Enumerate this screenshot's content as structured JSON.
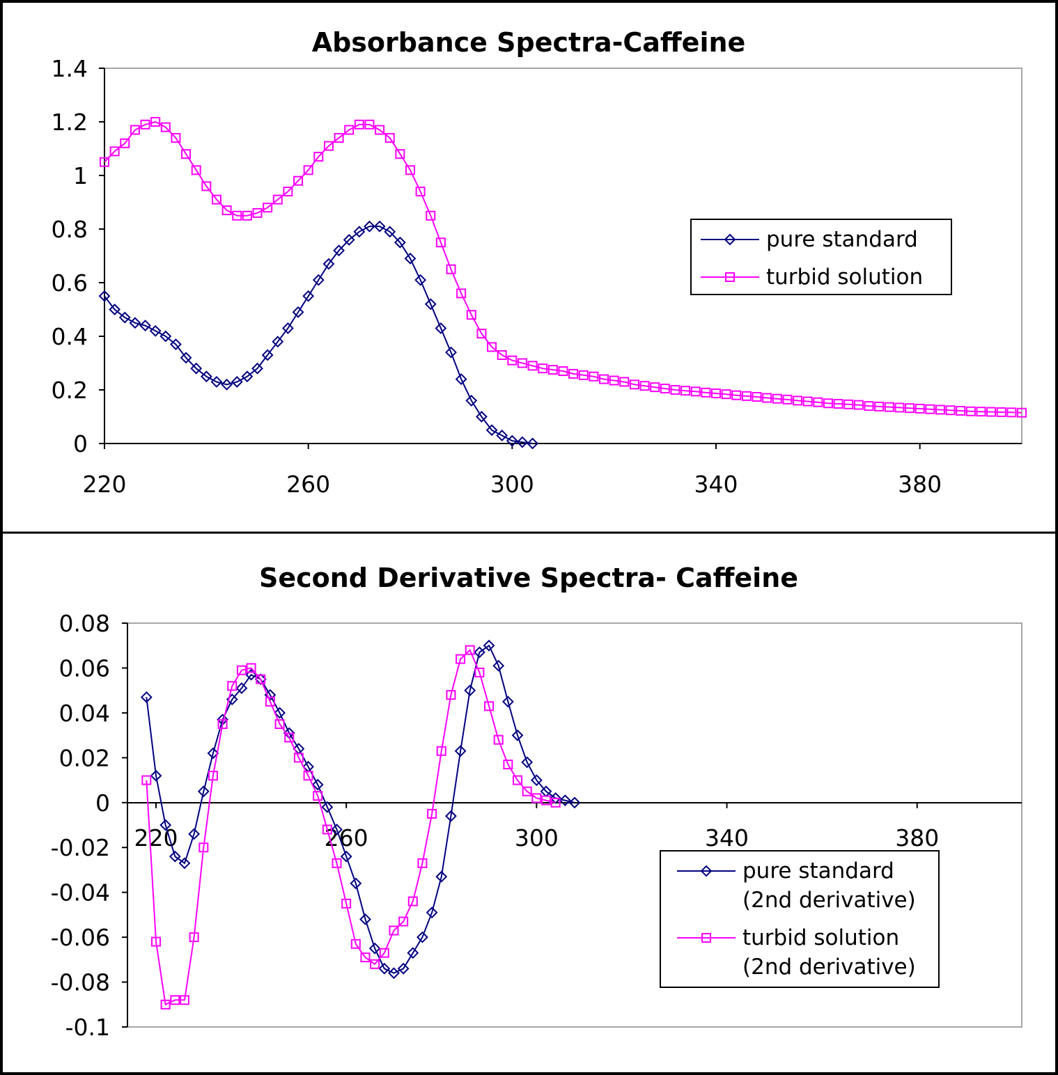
{
  "colors": {
    "pure": "#000080",
    "turbid": "#ff00ff"
  },
  "chart_data": [
    {
      "type": "line",
      "title": "Absorbance Spectra-Caffeine",
      "xlim": [
        220,
        400
      ],
      "ylim": [
        0,
        1.4
      ],
      "xticks": [
        220,
        260,
        300,
        340,
        380
      ],
      "xtick_labels": [
        "220",
        "260",
        "300",
        "340",
        "380"
      ],
      "yticks": [
        0,
        0.2,
        0.4,
        0.6,
        0.8,
        1.0,
        1.2,
        1.4
      ],
      "ytick_labels": [
        "0",
        "0.2",
        "0.4",
        "0.6",
        "0.8",
        "1",
        "1.2",
        "1.4"
      ],
      "grid": false,
      "legend_position": "right",
      "series": [
        {
          "name": "pure standard",
          "marker": "diamond",
          "color": "#000080",
          "points": [
            [
              220,
              0.55
            ],
            [
              222,
              0.5
            ],
            [
              224,
              0.47
            ],
            [
              226,
              0.45
            ],
            [
              228,
              0.44
            ],
            [
              230,
              0.42
            ],
            [
              232,
              0.4
            ],
            [
              234,
              0.37
            ],
            [
              236,
              0.32
            ],
            [
              238,
              0.28
            ],
            [
              240,
              0.25
            ],
            [
              242,
              0.23
            ],
            [
              244,
              0.22
            ],
            [
              246,
              0.23
            ],
            [
              248,
              0.25
            ],
            [
              250,
              0.28
            ],
            [
              252,
              0.33
            ],
            [
              254,
              0.38
            ],
            [
              256,
              0.43
            ],
            [
              258,
              0.49
            ],
            [
              260,
              0.55
            ],
            [
              262,
              0.61
            ],
            [
              264,
              0.67
            ],
            [
              266,
              0.72
            ],
            [
              268,
              0.76
            ],
            [
              270,
              0.79
            ],
            [
              272,
              0.81
            ],
            [
              274,
              0.81
            ],
            [
              276,
              0.79
            ],
            [
              278,
              0.75
            ],
            [
              280,
              0.69
            ],
            [
              282,
              0.61
            ],
            [
              284,
              0.52
            ],
            [
              286,
              0.43
            ],
            [
              288,
              0.34
            ],
            [
              290,
              0.24
            ],
            [
              292,
              0.16
            ],
            [
              294,
              0.1
            ],
            [
              296,
              0.05
            ],
            [
              298,
              0.03
            ],
            [
              300,
              0.01
            ],
            [
              302,
              0.005
            ],
            [
              304,
              0
            ]
          ]
        },
        {
          "name": "turbid solution",
          "marker": "square",
          "color": "#ff00ff",
          "points": [
            [
              220,
              1.05
            ],
            [
              222,
              1.09
            ],
            [
              224,
              1.12
            ],
            [
              226,
              1.17
            ],
            [
              228,
              1.19
            ],
            [
              230,
              1.2
            ],
            [
              232,
              1.18
            ],
            [
              234,
              1.14
            ],
            [
              236,
              1.08
            ],
            [
              238,
              1.02
            ],
            [
              240,
              0.96
            ],
            [
              242,
              0.91
            ],
            [
              244,
              0.87
            ],
            [
              246,
              0.85
            ],
            [
              248,
              0.85
            ],
            [
              250,
              0.86
            ],
            [
              252,
              0.88
            ],
            [
              254,
              0.91
            ],
            [
              256,
              0.94
            ],
            [
              258,
              0.98
            ],
            [
              260,
              1.02
            ],
            [
              262,
              1.07
            ],
            [
              264,
              1.11
            ],
            [
              266,
              1.14
            ],
            [
              268,
              1.17
            ],
            [
              270,
              1.19
            ],
            [
              272,
              1.19
            ],
            [
              274,
              1.17
            ],
            [
              276,
              1.14
            ],
            [
              278,
              1.08
            ],
            [
              280,
              1.02
            ],
            [
              282,
              0.94
            ],
            [
              284,
              0.85
            ],
            [
              286,
              0.75
            ],
            [
              288,
              0.65
            ],
            [
              290,
              0.56
            ],
            [
              292,
              0.48
            ],
            [
              294,
              0.41
            ],
            [
              296,
              0.36
            ],
            [
              298,
              0.33
            ],
            [
              300,
              0.31
            ],
            [
              302,
              0.3
            ],
            [
              304,
              0.29
            ],
            [
              306,
              0.28
            ],
            [
              308,
              0.275
            ],
            [
              310,
              0.27
            ],
            [
              312,
              0.26
            ],
            [
              314,
              0.255
            ],
            [
              316,
              0.25
            ],
            [
              318,
              0.24
            ],
            [
              320,
              0.235
            ],
            [
              322,
              0.23
            ],
            [
              324,
              0.22
            ],
            [
              326,
              0.215
            ],
            [
              328,
              0.21
            ],
            [
              330,
              0.205
            ],
            [
              332,
              0.2
            ],
            [
              334,
              0.197
            ],
            [
              336,
              0.194
            ],
            [
              338,
              0.19
            ],
            [
              340,
              0.187
            ],
            [
              342,
              0.184
            ],
            [
              344,
              0.18
            ],
            [
              346,
              0.177
            ],
            [
              348,
              0.174
            ],
            [
              350,
              0.17
            ],
            [
              352,
              0.167
            ],
            [
              354,
              0.164
            ],
            [
              356,
              0.16
            ],
            [
              358,
              0.157
            ],
            [
              360,
              0.154
            ],
            [
              362,
              0.15
            ],
            [
              364,
              0.148
            ],
            [
              366,
              0.146
            ],
            [
              368,
              0.144
            ],
            [
              370,
              0.14
            ],
            [
              372,
              0.138
            ],
            [
              374,
              0.136
            ],
            [
              376,
              0.134
            ],
            [
              378,
              0.132
            ],
            [
              380,
              0.13
            ],
            [
              382,
              0.128
            ],
            [
              384,
              0.126
            ],
            [
              386,
              0.124
            ],
            [
              388,
              0.122
            ],
            [
              390,
              0.12
            ],
            [
              392,
              0.119
            ],
            [
              394,
              0.118
            ],
            [
              396,
              0.117
            ],
            [
              398,
              0.116
            ],
            [
              400,
              0.115
            ]
          ]
        }
      ]
    },
    {
      "type": "line",
      "title": "Second Derivative Spectra- Caffeine",
      "xlim": [
        214,
        402
      ],
      "ylim": [
        -0.1,
        0.08
      ],
      "xticks": [
        220,
        260,
        300,
        340,
        380
      ],
      "xtick_labels": [
        "220",
        "260",
        "300",
        "340",
        "380"
      ],
      "yticks": [
        -0.1,
        -0.08,
        -0.06,
        -0.04,
        -0.02,
        0,
        0.02,
        0.04,
        0.06,
        0.08
      ],
      "ytick_labels": [
        "-0.1",
        "-0.08",
        "-0.06",
        "-0.04",
        "-0.02",
        "0",
        "0.02",
        "0.04",
        "0.06",
        "0.08"
      ],
      "grid": false,
      "legend_position": "bottom-right",
      "series": [
        {
          "name": "pure standard (2nd derivative)",
          "legend_lines": [
            "pure standard",
            "(2nd derivative)"
          ],
          "marker": "diamond",
          "color": "#000080",
          "points": [
            [
              218,
              0.047
            ],
            [
              220,
              0.012
            ],
            [
              222,
              -0.01
            ],
            [
              224,
              -0.024
            ],
            [
              226,
              -0.027
            ],
            [
              228,
              -0.014
            ],
            [
              230,
              0.005
            ],
            [
              232,
              0.022
            ],
            [
              234,
              0.037
            ],
            [
              236,
              0.046
            ],
            [
              238,
              0.051
            ],
            [
              240,
              0.057
            ],
            [
              242,
              0.055
            ],
            [
              244,
              0.048
            ],
            [
              246,
              0.04
            ],
            [
              248,
              0.031
            ],
            [
              250,
              0.024
            ],
            [
              252,
              0.016
            ],
            [
              254,
              0.008
            ],
            [
              256,
              -0.002
            ],
            [
              258,
              -0.012
            ],
            [
              260,
              -0.024
            ],
            [
              262,
              -0.036
            ],
            [
              264,
              -0.052
            ],
            [
              266,
              -0.065
            ],
            [
              268,
              -0.074
            ],
            [
              270,
              -0.076
            ],
            [
              272,
              -0.074
            ],
            [
              274,
              -0.067
            ],
            [
              276,
              -0.06
            ],
            [
              278,
              -0.049
            ],
            [
              280,
              -0.033
            ],
            [
              282,
              -0.006
            ],
            [
              284,
              0.023
            ],
            [
              286,
              0.05
            ],
            [
              288,
              0.067
            ],
            [
              290,
              0.07
            ],
            [
              292,
              0.061
            ],
            [
              294,
              0.045
            ],
            [
              296,
              0.03
            ],
            [
              298,
              0.018
            ],
            [
              300,
              0.01
            ],
            [
              302,
              0.005
            ],
            [
              304,
              0.002
            ],
            [
              306,
              0.001
            ],
            [
              308,
              0
            ]
          ]
        },
        {
          "name": "turbid solution (2nd derivative)",
          "legend_lines": [
            "turbid solution",
            "(2nd derivative)"
          ],
          "marker": "square",
          "color": "#ff00ff",
          "points": [
            [
              218,
              0.01
            ],
            [
              220,
              -0.062
            ],
            [
              222,
              -0.09
            ],
            [
              224,
              -0.088
            ],
            [
              226,
              -0.088
            ],
            [
              228,
              -0.06
            ],
            [
              230,
              -0.02
            ],
            [
              232,
              0.012
            ],
            [
              234,
              0.035
            ],
            [
              236,
              0.052
            ],
            [
              238,
              0.059
            ],
            [
              240,
              0.06
            ],
            [
              242,
              0.055
            ],
            [
              244,
              0.045
            ],
            [
              246,
              0.035
            ],
            [
              248,
              0.029
            ],
            [
              250,
              0.02
            ],
            [
              252,
              0.012
            ],
            [
              254,
              0.003
            ],
            [
              256,
              -0.012
            ],
            [
              258,
              -0.027
            ],
            [
              260,
              -0.045
            ],
            [
              262,
              -0.063
            ],
            [
              264,
              -0.069
            ],
            [
              266,
              -0.072
            ],
            [
              268,
              -0.067
            ],
            [
              270,
              -0.057
            ],
            [
              272,
              -0.053
            ],
            [
              274,
              -0.044
            ],
            [
              276,
              -0.027
            ],
            [
              278,
              -0.005
            ],
            [
              280,
              0.023
            ],
            [
              282,
              0.048
            ],
            [
              284,
              0.064
            ],
            [
              286,
              0.068
            ],
            [
              288,
              0.058
            ],
            [
              290,
              0.043
            ],
            [
              292,
              0.028
            ],
            [
              294,
              0.017
            ],
            [
              296,
              0.01
            ],
            [
              298,
              0.005
            ],
            [
              300,
              0.002
            ],
            [
              302,
              0.001
            ],
            [
              304,
              0
            ]
          ]
        }
      ]
    }
  ]
}
